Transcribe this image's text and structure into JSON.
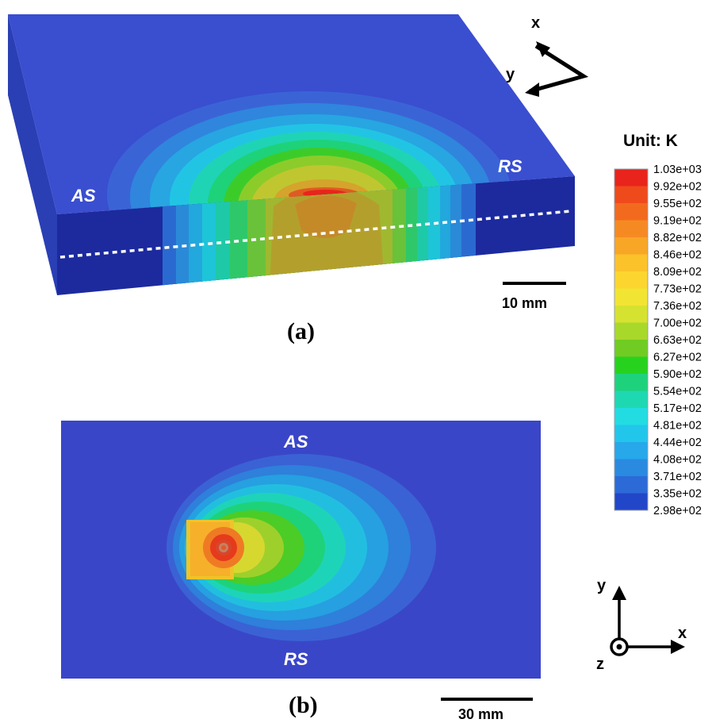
{
  "panel_a": {
    "label_as": "AS",
    "label_rs": "RS",
    "scale_bar": "10 mm",
    "caption": "(a)",
    "axes": {
      "x": "x",
      "y": "y"
    }
  },
  "panel_b": {
    "label_as": "AS",
    "label_rs": "RS",
    "scale_bar": "30 mm",
    "caption": "(b)",
    "axes": {
      "x": "x",
      "y": "y",
      "z": "z"
    }
  },
  "colorbar": {
    "title": "Unit: K",
    "ticks": [
      "1.03e+03",
      "9.92e+02",
      "9.55e+02",
      "9.19e+02",
      "8.82e+02",
      "8.46e+02",
      "8.09e+02",
      "7.73e+02",
      "7.36e+02",
      "7.00e+02",
      "6.63e+02",
      "6.27e+02",
      "5.90e+02",
      "5.54e+02",
      "5.17e+02",
      "4.81e+02",
      "4.44e+02",
      "4.08e+02",
      "3.71e+02",
      "3.35e+02",
      "2.98e+02"
    ],
    "colors": [
      "#e8241c",
      "#ee4a1c",
      "#f26a1e",
      "#f68a22",
      "#f8a626",
      "#fbc22a",
      "#fcd62e",
      "#f2e432",
      "#d6e230",
      "#a8d82a",
      "#70cc22",
      "#26d21e",
      "#1ed27c",
      "#1ed8b2",
      "#22dce2",
      "#22c6ea",
      "#26a8ea",
      "#2a8ae0",
      "#2c6ad8",
      "#2246c8"
    ]
  }
}
